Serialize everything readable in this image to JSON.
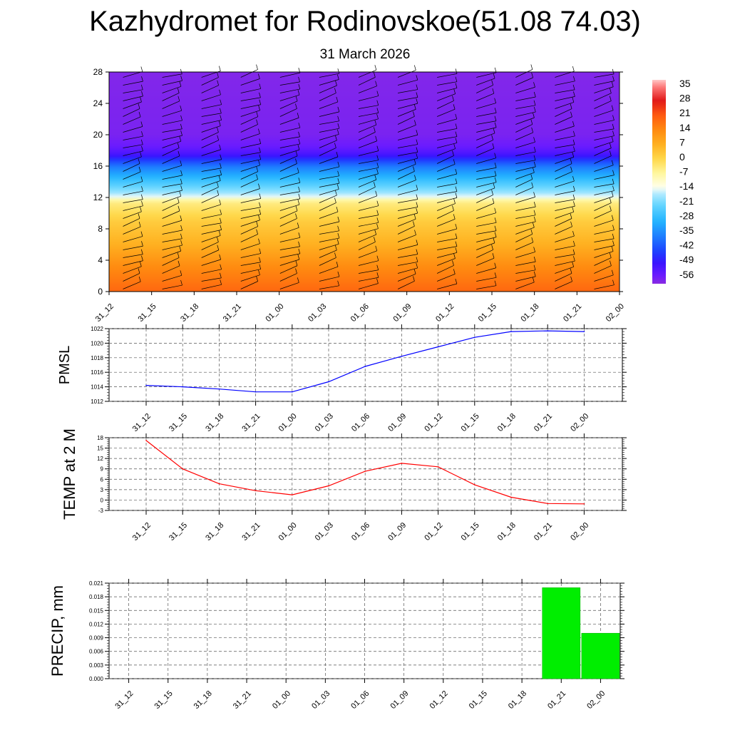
{
  "title": "Kazhydromet for Rodinovskoe(51.08 74.03)",
  "subtitle": "31 March 2026",
  "chart_data": [
    {
      "type": "heatmap",
      "description_axis": "height",
      "x_ticks": [
        "31_12",
        "31_15",
        "31_18",
        "31_21",
        "01_00",
        "01_03",
        "01_06",
        "01_09",
        "01_12",
        "01_15",
        "01_18",
        "01_21",
        "02_00"
      ],
      "y_ticks": [
        0,
        4,
        8,
        12,
        16,
        20,
        24,
        28
      ],
      "ylim": [
        0,
        28
      ],
      "colorbar_labels": [
        "35",
        "28",
        "21",
        "14",
        "7",
        "0",
        "-7",
        "-14",
        "-21",
        "-28",
        "-35",
        "-42",
        "-49",
        "-56"
      ],
      "colorbar_range": [
        -60,
        38
      ],
      "temperature_profile": [
        {
          "y": 0,
          "value": 19
        },
        {
          "y": 3,
          "value": 14
        },
        {
          "y": 6,
          "value": 7
        },
        {
          "y": 9,
          "value": 2
        },
        {
          "y": 11.5,
          "value": -5
        },
        {
          "y": 12.2,
          "value": -16
        },
        {
          "y": 14,
          "value": -26
        },
        {
          "y": 16,
          "value": -38
        },
        {
          "y": 17.5,
          "value": -52
        },
        {
          "y": 18.5,
          "value": -56
        },
        {
          "y": 20,
          "value": -58
        },
        {
          "y": 28,
          "value": -59
        }
      ],
      "wind_barbs": true
    },
    {
      "type": "line",
      "ylabel": "PMSL",
      "categories": [
        "31_12",
        "31_15",
        "31_18",
        "31_21",
        "01_00",
        "01_03",
        "01_06",
        "01_09",
        "01_12",
        "01_15",
        "01_18",
        "01_21",
        "02_00"
      ],
      "values": [
        1014.2,
        1014.0,
        1013.7,
        1013.3,
        1013.3,
        1014.7,
        1016.8,
        1018.2,
        1019.5,
        1020.8,
        1021.6,
        1021.7,
        1021.6
      ],
      "y_ticks": [
        1012,
        1014,
        1016,
        1018,
        1020,
        1022
      ],
      "ylim": [
        1012,
        1022
      ],
      "color": "#0000ff",
      "grid": true
    },
    {
      "type": "line",
      "ylabel": "TEMP at 2 M",
      "categories": [
        "31_12",
        "31_15",
        "31_18",
        "31_21",
        "01_00",
        "01_03",
        "01_06",
        "01_09",
        "01_12",
        "01_15",
        "01_18",
        "01_21",
        "02_00"
      ],
      "values": [
        17.2,
        9.0,
        4.7,
        2.7,
        1.5,
        4.1,
        8.3,
        10.6,
        9.6,
        4.4,
        0.8,
        -1.0,
        -1.1
      ],
      "y_ticks": [
        -3,
        0,
        3,
        6,
        9,
        12,
        15,
        18
      ],
      "ylim": [
        -3,
        18
      ],
      "color": "#ff0000",
      "grid": true
    },
    {
      "type": "bar",
      "ylabel": "PRECIP, mm",
      "categories": [
        "31_12",
        "31_15",
        "31_18",
        "31_21",
        "01_00",
        "01_03",
        "01_06",
        "01_09",
        "01_12",
        "01_15",
        "01_18",
        "01_21",
        "02_00"
      ],
      "values": [
        0,
        0,
        0,
        0,
        0,
        0,
        0,
        0,
        0,
        0,
        0,
        0.02,
        0.01
      ],
      "y_ticks": [
        "0.000",
        "0.003",
        "0.006",
        "0.009",
        "0.012",
        "0.015",
        "0.018",
        "0.021"
      ],
      "ylim": [
        0,
        0.021
      ],
      "color": "#00ee00",
      "grid": true
    }
  ]
}
